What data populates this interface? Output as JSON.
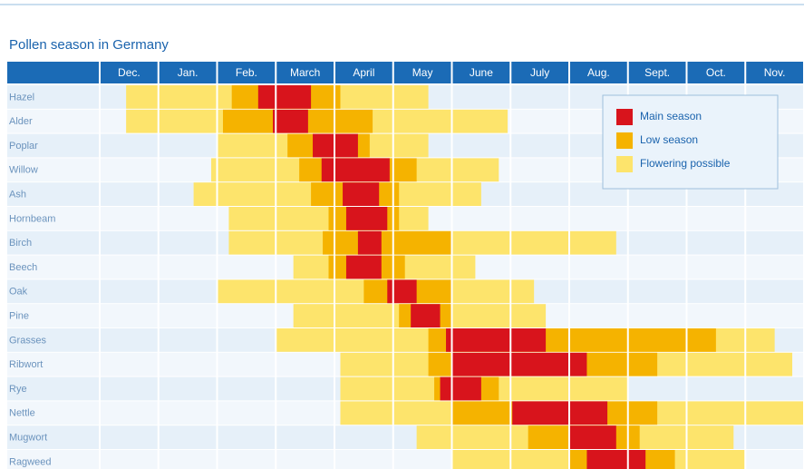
{
  "chart_data": {
    "type": "season-calendar",
    "title": "Pollen season in Germany",
    "months": [
      "Dec.",
      "Jan.",
      "Feb.",
      "March",
      "April",
      "May",
      "June",
      "July",
      "Aug.",
      "Sept.",
      "Oct.",
      "Nov."
    ],
    "legend": [
      {
        "label": "Main season",
        "color": "#d8141c"
      },
      {
        "label": "Low season",
        "color": "#f5b300"
      },
      {
        "label": "Flowering possible",
        "color": "#fde46c"
      }
    ],
    "rows": [
      {
        "name": "Hazel",
        "segments": [
          [
            0.45,
            5.6,
            2
          ],
          [
            2.25,
            4.1,
            1
          ],
          [
            2.7,
            3.6,
            0
          ]
        ]
      },
      {
        "name": "Alder",
        "segments": [
          [
            0.45,
            6.95,
            2
          ],
          [
            2.1,
            4.65,
            1
          ],
          [
            2.95,
            3.55,
            0
          ]
        ]
      },
      {
        "name": "Poplar",
        "segments": [
          [
            2.0,
            5.6,
            2
          ],
          [
            3.2,
            4.6,
            1
          ],
          [
            3.63,
            4.4,
            0
          ]
        ]
      },
      {
        "name": "Willow",
        "segments": [
          [
            1.9,
            6.8,
            2
          ],
          [
            3.4,
            5.4,
            1
          ],
          [
            3.78,
            4.94,
            0
          ]
        ]
      },
      {
        "name": "Ash",
        "segments": [
          [
            1.6,
            6.5,
            2
          ],
          [
            3.6,
            5.1,
            1
          ],
          [
            4.14,
            4.76,
            0
          ]
        ]
      },
      {
        "name": "Hornbeam",
        "segments": [
          [
            2.2,
            5.6,
            2
          ],
          [
            3.9,
            5.1,
            1
          ],
          [
            4.2,
            4.9,
            0
          ]
        ]
      },
      {
        "name": "Birch",
        "segments": [
          [
            2.2,
            8.8,
            2
          ],
          [
            3.8,
            6.0,
            1
          ],
          [
            4.4,
            4.8,
            0
          ]
        ]
      },
      {
        "name": "Beech",
        "segments": [
          [
            3.3,
            6.4,
            2
          ],
          [
            3.9,
            5.2,
            1
          ],
          [
            4.2,
            4.8,
            0
          ]
        ]
      },
      {
        "name": "Oak",
        "segments": [
          [
            2.0,
            7.4,
            2
          ],
          [
            4.5,
            6.0,
            1
          ],
          [
            4.9,
            5.4,
            0
          ]
        ]
      },
      {
        "name": "Pine",
        "segments": [
          [
            3.3,
            7.6,
            2
          ],
          [
            5.1,
            6.0,
            1
          ],
          [
            5.3,
            5.8,
            0
          ]
        ]
      },
      {
        "name": "Grasses",
        "segments": [
          [
            3.0,
            11.5,
            2
          ],
          [
            5.6,
            10.5,
            1
          ],
          [
            5.9,
            7.6,
            0
          ]
        ]
      },
      {
        "name": "Ribwort",
        "segments": [
          [
            4.1,
            11.8,
            2
          ],
          [
            5.6,
            9.5,
            1
          ],
          [
            6.0,
            8.3,
            0
          ]
        ]
      },
      {
        "name": "Rye",
        "segments": [
          [
            4.1,
            9.0,
            2
          ],
          [
            5.7,
            6.8,
            1
          ],
          [
            5.8,
            6.5,
            0
          ]
        ]
      },
      {
        "name": "Nettle",
        "segments": [
          [
            4.1,
            12,
            2
          ],
          [
            6.0,
            9.5,
            1
          ],
          [
            7.03,
            8.65,
            0
          ]
        ]
      },
      {
        "name": "Mugwort",
        "segments": [
          [
            5.4,
            10.8,
            2
          ],
          [
            7.3,
            9.2,
            1
          ],
          [
            8.0,
            8.8,
            0
          ]
        ]
      },
      {
        "name": "Ragweed",
        "segments": [
          [
            6.0,
            11.0,
            2
          ],
          [
            8.0,
            9.8,
            1
          ],
          [
            8.3,
            9.3,
            0
          ]
        ]
      }
    ]
  }
}
